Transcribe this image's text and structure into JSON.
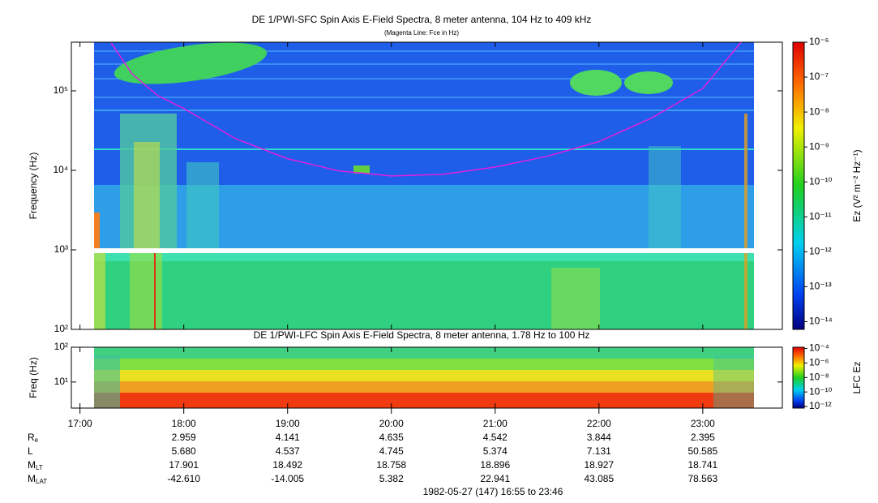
{
  "chart_data": {
    "type": "spectrogram",
    "title": "DE 1/PWI-SFC  Spin Axis E-Field Spectra, 8 meter antenna, 104 Hz to 409 kHz",
    "subtitle": "(Magenta Line: Fce in Hz)",
    "xlim": [
      16.9167,
      23.7667
    ],
    "xticks": [
      {
        "value": 17,
        "label": "17:00"
      },
      {
        "value": 18,
        "label": "18:00"
      },
      {
        "value": 19,
        "label": "19:00"
      },
      {
        "value": 20,
        "label": "20:00"
      },
      {
        "value": 21,
        "label": "21:00"
      },
      {
        "value": 22,
        "label": "22:00"
      },
      {
        "value": 23,
        "label": "23:00"
      }
    ],
    "panels": [
      {
        "ylabel": "Frequency (Hz)",
        "log_y": true,
        "ylim": [
          100,
          409000
        ],
        "yticks": [
          {
            "value": 100,
            "label": "10²"
          },
          {
            "value": 1000,
            "label": "10³"
          },
          {
            "value": 10000,
            "label": "10⁴"
          },
          {
            "value": 100000,
            "label": "10⁵"
          }
        ],
        "colorbar": {
          "label": "Ez (V² m⁻² Hz⁻¹)",
          "zlim": [
            6e-15,
            1e-06
          ],
          "ticks": [
            {
              "value": 1e-06,
              "label": "10⁻⁶"
            },
            {
              "value": 1e-07,
              "label": "10⁻⁷"
            },
            {
              "value": 1e-08,
              "label": "10⁻⁸"
            },
            {
              "value": 1e-09,
              "label": "10⁻⁹"
            },
            {
              "value": 1e-10,
              "label": "10⁻¹⁰"
            },
            {
              "value": 1e-11,
              "label": "10⁻¹¹"
            },
            {
              "value": 1e-12,
              "label": "10⁻¹²"
            },
            {
              "value": 1e-13,
              "label": "10⁻¹³"
            },
            {
              "value": 1e-14,
              "label": "10⁻¹⁴"
            }
          ]
        }
      },
      {
        "title": "DE 1/PWI-LFC  Spin Axis E-Field Spectra, 8 meter antenna, 1.78 Hz to 100 Hz",
        "ylabel": "Freq (Hz)",
        "log_y": true,
        "ylim": [
          1.78,
          100
        ],
        "yticks": [
          {
            "value": 10,
            "label": "10¹"
          },
          {
            "value": 100,
            "label": "10²"
          }
        ],
        "colorbar": {
          "label": "LFC Ez",
          "zlim": [
            6e-13,
            0.00015
          ],
          "ticks": [
            {
              "value": 0.0001,
              "label": "10⁻⁴"
            },
            {
              "value": 1e-06,
              "label": "10⁻⁶"
            },
            {
              "value": 1e-08,
              "label": "10⁻⁸"
            },
            {
              "value": 1e-10,
              "label": "10⁻¹⁰"
            },
            {
              "value": 1e-12,
              "label": "10⁻¹²"
            }
          ]
        }
      }
    ],
    "fce_line": {
      "color": "#e020e0",
      "x": [
        17.3,
        17.5,
        17.75,
        18,
        18.5,
        19,
        19.5,
        20,
        20.5,
        21,
        21.5,
        22,
        22.5,
        23,
        23.37
      ],
      "values": [
        400000,
        164000,
        87000,
        60000,
        25000,
        14000,
        9800,
        8500,
        8900,
        11000,
        15000,
        23000,
        45000,
        107000,
        409000
      ]
    },
    "ephemeris": [
      {
        "label": "R",
        "sub": "e",
        "values": [
          "2.959",
          "4.141",
          "4.635",
          "4.542",
          "3.844",
          "2.395"
        ]
      },
      {
        "label": "L",
        "values": [
          "5.680",
          "4.537",
          "4.745",
          "5.374",
          "7.131",
          "50.585"
        ]
      },
      {
        "label": "M",
        "sub": "LT",
        "values": [
          "17.901",
          "18.492",
          "18.758",
          "18.896",
          "18.927",
          "18.741"
        ]
      },
      {
        "label": "M",
        "sub": "LAT",
        "values": [
          "-42.610",
          "-14.005",
          "5.382",
          "22.941",
          "43.085",
          "78.563"
        ]
      }
    ],
    "footer": "1982-05-27 (147) 16:55 to 23:46"
  }
}
